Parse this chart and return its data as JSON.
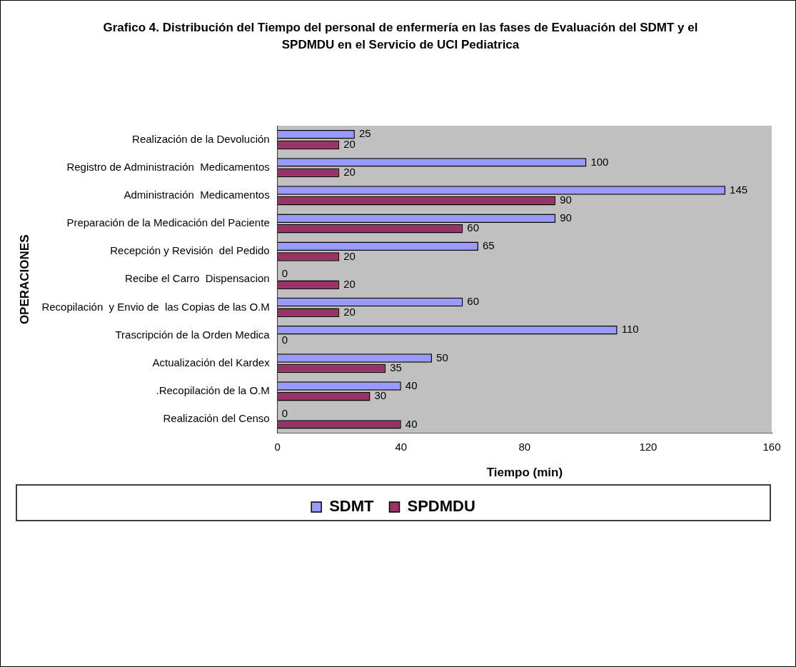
{
  "chart_data": {
    "type": "bar",
    "orientation": "horizontal",
    "title": "Grafico 4.  Distribución del Tiempo del personal de enfermería en las fases  de Evaluación del SDMT y el SPDMDU  en el  Servicio de UCI Pediatrica",
    "xlabel": "Tiempo (min)",
    "ylabel": "OPERACIONES",
    "categories": [
      "Realización de la Devolución",
      "Registro de Administración  Medicamentos",
      "Administración  Medicamentos",
      "Preparación de la Medicación del Paciente",
      "Recepción y Revisión  del Pedido",
      "Recibe el Carro  Dispensacion",
      "Recopilación  y Envio de  las Copias de las O.M",
      "Trascripción de la Orden Medica",
      "Actualización del Kardex",
      ".Recopilación de la O.M",
      "Realización del Censo"
    ],
    "series": [
      {
        "name": "SDMT",
        "color": "#9999ff",
        "values": [
          25,
          100,
          145,
          90,
          65,
          0,
          60,
          110,
          50,
          40,
          0
        ]
      },
      {
        "name": "SPDMDU",
        "color": "#993366",
        "values": [
          20,
          20,
          90,
          60,
          20,
          20,
          20,
          0,
          35,
          30,
          40
        ]
      }
    ],
    "xlim": [
      0,
      160
    ],
    "xticks": [
      0,
      40,
      80,
      120,
      160
    ],
    "grid": false,
    "legend": "bottom",
    "data_labels": true
  }
}
